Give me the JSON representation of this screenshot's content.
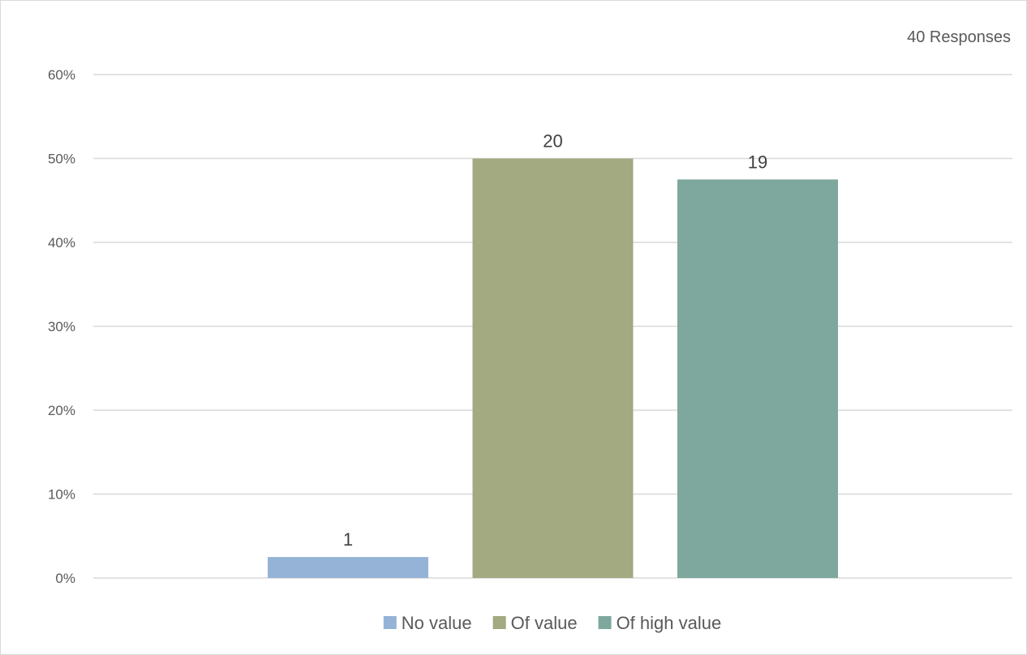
{
  "chart_data": {
    "type": "bar",
    "title": "",
    "xlabel": "",
    "ylabel": "",
    "annotation": "40 Responses",
    "ylim": [
      0,
      0.6
    ],
    "yticks": [
      0,
      0.1,
      0.2,
      0.3,
      0.4,
      0.5,
      0.6
    ],
    "ytick_labels": [
      "0%",
      "10%",
      "20%",
      "30%",
      "40%",
      "50%",
      "60%"
    ],
    "grid": true,
    "legend_position": "bottom",
    "categories": [
      "No value",
      "Of value",
      "Of high value"
    ],
    "values": [
      0.025,
      0.5,
      0.475
    ],
    "data_labels": [
      "1",
      "20",
      "19"
    ],
    "colors": [
      "#95b3d7",
      "#a3a980",
      "#7ea79d"
    ]
  }
}
